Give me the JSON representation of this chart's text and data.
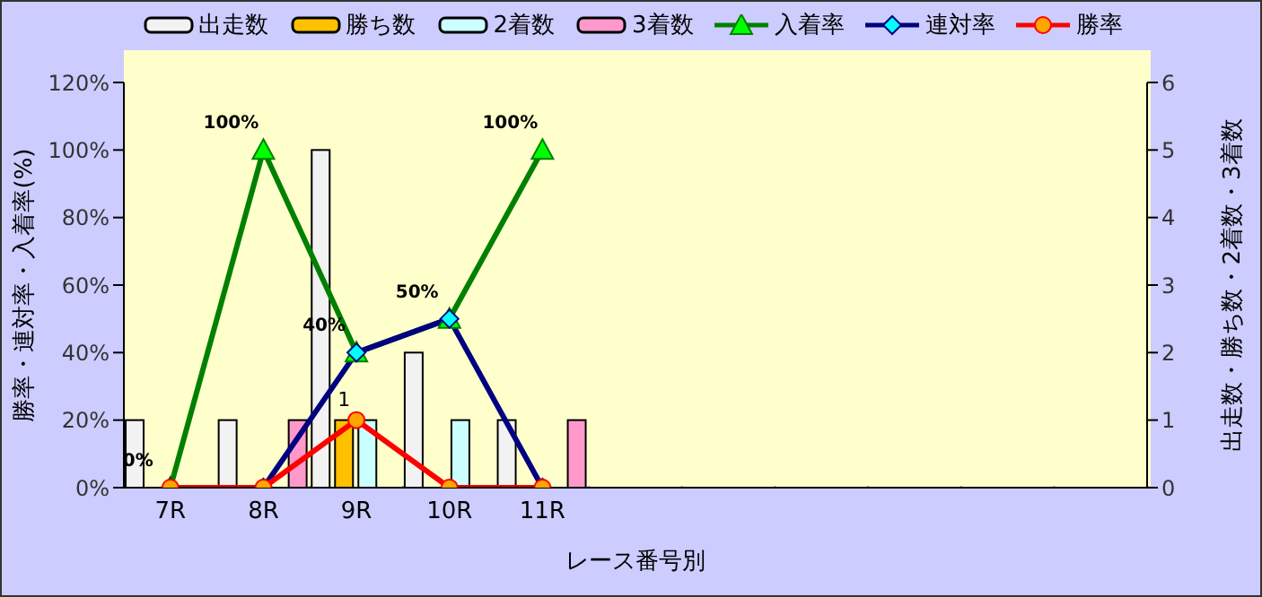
{
  "chart_data": {
    "type": "bar",
    "xlabel": "レース番号別",
    "ylabel": "勝率・連対率・入着率(%)",
    "y2label": "出走数・勝ち数・2着数・3着数",
    "categories": [
      "7R",
      "8R",
      "9R",
      "10R",
      "11R",
      null,
      null,
      null,
      null,
      null,
      null
    ],
    "series": [
      {
        "name": "出走数",
        "type": "bar",
        "axis": "y2",
        "color": "#f2f2f2",
        "values": [
          1,
          1,
          5,
          2,
          1,
          null,
          null,
          null,
          null,
          null,
          null
        ]
      },
      {
        "name": "勝ち数",
        "type": "bar",
        "axis": "y2",
        "color": "#ffc000",
        "values": [
          0,
          0,
          1,
          0,
          0,
          null,
          null,
          null,
          null,
          null,
          null
        ],
        "value_labels": [
          null,
          null,
          "1",
          null,
          null,
          null,
          null,
          null,
          null,
          null,
          null
        ]
      },
      {
        "name": "2着数",
        "type": "bar",
        "axis": "y2",
        "color": "#ccffff",
        "values": [
          0,
          0,
          1,
          1,
          0,
          null,
          null,
          null,
          null,
          null,
          null
        ]
      },
      {
        "name": "3着数",
        "type": "bar",
        "axis": "y2",
        "color": "#ff99cc",
        "values": [
          0,
          1,
          0,
          0,
          1,
          null,
          null,
          null,
          null,
          null,
          null
        ]
      },
      {
        "name": "入着率",
        "type": "line",
        "axis": "y",
        "color": "#008000",
        "marker": "triangle",
        "values": [
          0,
          100,
          40,
          50,
          100,
          null,
          null,
          null,
          null,
          null,
          null
        ],
        "value_labels": [
          "0%",
          "100%",
          "40%",
          "50%",
          "100%",
          null,
          null,
          null,
          null,
          null,
          null
        ]
      },
      {
        "name": "連対率",
        "type": "line",
        "axis": "y",
        "color": "#000080",
        "marker": "diamond",
        "values": [
          0,
          0,
          40,
          50,
          0,
          null,
          null,
          null,
          null,
          null,
          null
        ]
      },
      {
        "name": "勝率",
        "type": "line",
        "axis": "y",
        "color": "#ff0000",
        "marker": "circle",
        "values": [
          0,
          0,
          20,
          0,
          0,
          null,
          null,
          null,
          null,
          null,
          null
        ]
      }
    ],
    "ylim": [
      0,
      120
    ],
    "yticks": [
      {
        "value": 0,
        "label": "0%"
      },
      {
        "value": 20,
        "label": "20%"
      },
      {
        "value": 40,
        "label": "40%"
      },
      {
        "value": 60,
        "label": "60%"
      },
      {
        "value": 80,
        "label": "80%"
      },
      {
        "value": 100,
        "label": "100%"
      },
      {
        "value": 120,
        "label": "120%"
      }
    ],
    "y2lim": [
      0,
      6
    ],
    "y2ticks": [
      0,
      1,
      2,
      3,
      4,
      5,
      6
    ],
    "grid": true,
    "legend": "top",
    "line_style": "solid"
  }
}
